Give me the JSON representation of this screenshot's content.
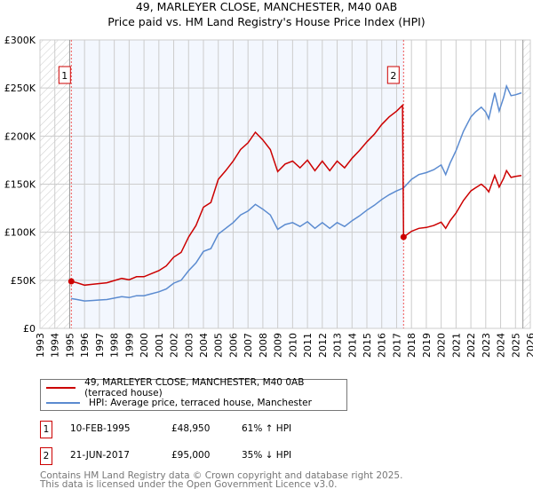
{
  "title": "49, MARLEYER CLOSE, MANCHESTER, M40 0AB",
  "subtitle": "Price paid vs. HM Land Registry's House Price Index (HPI)",
  "chart_data": {
    "type": "line",
    "title": "49, MARLEYER CLOSE, MANCHESTER, M40 0AB",
    "subtitle": "Price paid vs. HM Land Registry's House Price Index (HPI)",
    "xlim": [
      1993,
      2026
    ],
    "ylim": [
      0,
      300000
    ],
    "grid": true,
    "y_ticks": [
      0,
      50000,
      100000,
      150000,
      200000,
      250000,
      300000
    ],
    "y_tick_labels": [
      "£0",
      "£50K",
      "£100K",
      "£150K",
      "£200K",
      "£250K",
      "£300K"
    ],
    "x_ticks": [
      "1993",
      "1994",
      "1995",
      "1996",
      "1997",
      "1998",
      "1999",
      "2000",
      "2001",
      "2002",
      "2003",
      "2004",
      "2005",
      "2006",
      "2007",
      "2008",
      "2009",
      "2010",
      "2011",
      "2012",
      "2013",
      "2014",
      "2015",
      "2016",
      "2017",
      "2018",
      "2019",
      "2020",
      "2021",
      "2022",
      "2023",
      "2024",
      "2025",
      "2026"
    ],
    "series": [
      {
        "name": "49, MARLEYER CLOSE, MANCHESTER, M40 0AB (terraced house)",
        "color": "#cc0000",
        "x": [
          1995.1,
          1995.5,
          1996,
          1996.5,
          1997,
          1997.5,
          1998,
          1998.5,
          1999,
          1999.5,
          2000,
          2000.5,
          2001,
          2001.5,
          2002,
          2002.5,
          2003,
          2003.5,
          2004,
          2004.5,
          2005,
          2005.5,
          2006,
          2006.5,
          2007,
          2007.5,
          2008,
          2008.5,
          2009,
          2009.5,
          2010,
          2010.5,
          2011,
          2011.5,
          2012,
          2012.5,
          2013,
          2013.5,
          2014,
          2014.5,
          2015,
          2015.5,
          2016,
          2016.5,
          2017,
          2017.4,
          2017.47,
          2018,
          2018.5,
          2019,
          2019.5,
          2020,
          2020.3,
          2020.6,
          2021,
          2021.5,
          2022,
          2022.3,
          2022.7,
          2023,
          2023.2,
          2023.6,
          2023.9,
          2024.2,
          2024.4,
          2024.7,
          2025,
          2025.4
        ],
        "y": [
          48950,
          47400,
          45000,
          45800,
          46600,
          47400,
          49800,
          52000,
          50600,
          53700,
          53700,
          57000,
          60000,
          65000,
          74000,
          79000,
          95000,
          107000,
          126000,
          131000,
          155000,
          164000,
          174000,
          186000,
          193000,
          204000,
          196000,
          186000,
          163000,
          171000,
          174000,
          167000,
          175000,
          164000,
          174000,
          164000,
          174000,
          167000,
          177000,
          185000,
          194000,
          202000,
          212000,
          220000,
          226000,
          232000,
          95000,
          101000,
          104000,
          105000,
          107000,
          110500,
          104000,
          112000,
          120000,
          133000,
          143000,
          146000,
          150000,
          146000,
          142000,
          159000,
          147000,
          156000,
          164000,
          157000,
          158000,
          159000
        ]
      },
      {
        "name": "HPI: Average price, terraced house, Manchester",
        "color": "#5b8bd0",
        "x": [
          1995.1,
          1995.5,
          1996,
          1996.5,
          1997,
          1997.5,
          1998,
          1998.5,
          1999,
          1999.5,
          2000,
          2000.5,
          2001,
          2001.5,
          2002,
          2002.5,
          2003,
          2003.5,
          2004,
          2004.5,
          2005,
          2005.5,
          2006,
          2006.5,
          2007,
          2007.5,
          2008,
          2008.5,
          2009,
          2009.5,
          2010,
          2010.5,
          2011,
          2011.5,
          2012,
          2012.5,
          2013,
          2013.5,
          2014,
          2014.5,
          2015,
          2015.5,
          2016,
          2016.5,
          2017,
          2017.47,
          2018,
          2018.5,
          2019,
          2019.5,
          2020,
          2020.3,
          2020.6,
          2021,
          2021.5,
          2022,
          2022.3,
          2022.7,
          2023,
          2023.2,
          2023.6,
          2023.9,
          2024.2,
          2024.4,
          2024.7,
          2025,
          2025.4
        ],
        "y": [
          31000,
          30000,
          28500,
          29000,
          29500,
          30000,
          31500,
          33000,
          32000,
          34000,
          34000,
          36000,
          38000,
          41000,
          47000,
          50000,
          60000,
          68000,
          80000,
          83000,
          98000,
          104000,
          110000,
          118000,
          122000,
          129000,
          124000,
          118000,
          103000,
          108000,
          110000,
          106000,
          111000,
          104000,
          110000,
          104000,
          110000,
          106000,
          112000,
          117000,
          123000,
          128000,
          134000,
          139000,
          143000,
          146000,
          155000,
          160000,
          162000,
          165000,
          170000,
          160000,
          172000,
          185000,
          205000,
          220000,
          225000,
          230000,
          225000,
          218000,
          245000,
          226000,
          240000,
          252000,
          242000,
          243000,
          245000
        ]
      }
    ],
    "annotations": [
      {
        "label": "1",
        "x": 1995.11,
        "y": 48950
      },
      {
        "label": "2",
        "x": 2017.47,
        "y": 95000
      }
    ],
    "legend_placement": "bottom"
  },
  "legend": [
    {
      "label": "49, MARLEYER CLOSE, MANCHESTER, M40 0AB (terraced house)",
      "color": "#cc0000"
    },
    {
      "label": "HPI: Average price, terraced house, Manchester",
      "color": "#5b8bd0"
    }
  ],
  "transactions": [
    {
      "num": "1",
      "date": "10-FEB-1995",
      "price": "£48,950",
      "hpi": "61% ↑ HPI"
    },
    {
      "num": "2",
      "date": "21-JUN-2017",
      "price": "£95,000",
      "hpi": "35% ↓ HPI"
    }
  ],
  "footer": {
    "line1": "Contains HM Land Registry data © Crown copyright and database right 2025.",
    "line2": "This data is licensed under the Open Government Licence v3.0."
  }
}
